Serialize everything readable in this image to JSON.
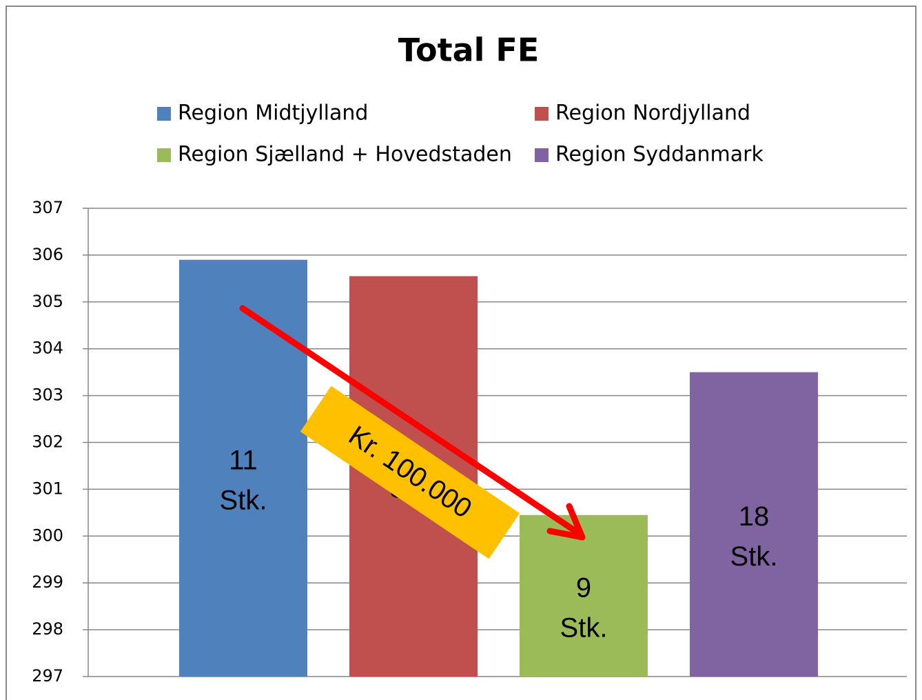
{
  "chart_data": {
    "type": "bar",
    "title": "Total FE",
    "categories": [
      null
    ],
    "series": [
      {
        "name": "Region Midtjylland",
        "color": "#4f81bd",
        "values": [
          305.9
        ]
      },
      {
        "name": "Region Nordjylland",
        "color": "#c0504d",
        "values": [
          305.55
        ]
      },
      {
        "name": "Region Sjælland + Hovedstaden",
        "color": "#9bbb59",
        "values": [
          300.45
        ]
      },
      {
        "name": "Region Syddanmark",
        "color": "#8064a2",
        "values": [
          303.5
        ]
      }
    ],
    "bar_texts": [
      [
        "11",
        "Stk."
      ],
      [
        "Stk."
      ],
      [
        "9",
        "Stk."
      ],
      [
        "18",
        "Stk."
      ]
    ],
    "annotation": "Kr. 100.000",
    "ylim": [
      297,
      307
    ],
    "yticks": [
      297,
      298,
      299,
      300,
      301,
      302,
      303,
      304,
      305,
      306,
      307
    ],
    "grid": true,
    "legend": "top"
  }
}
